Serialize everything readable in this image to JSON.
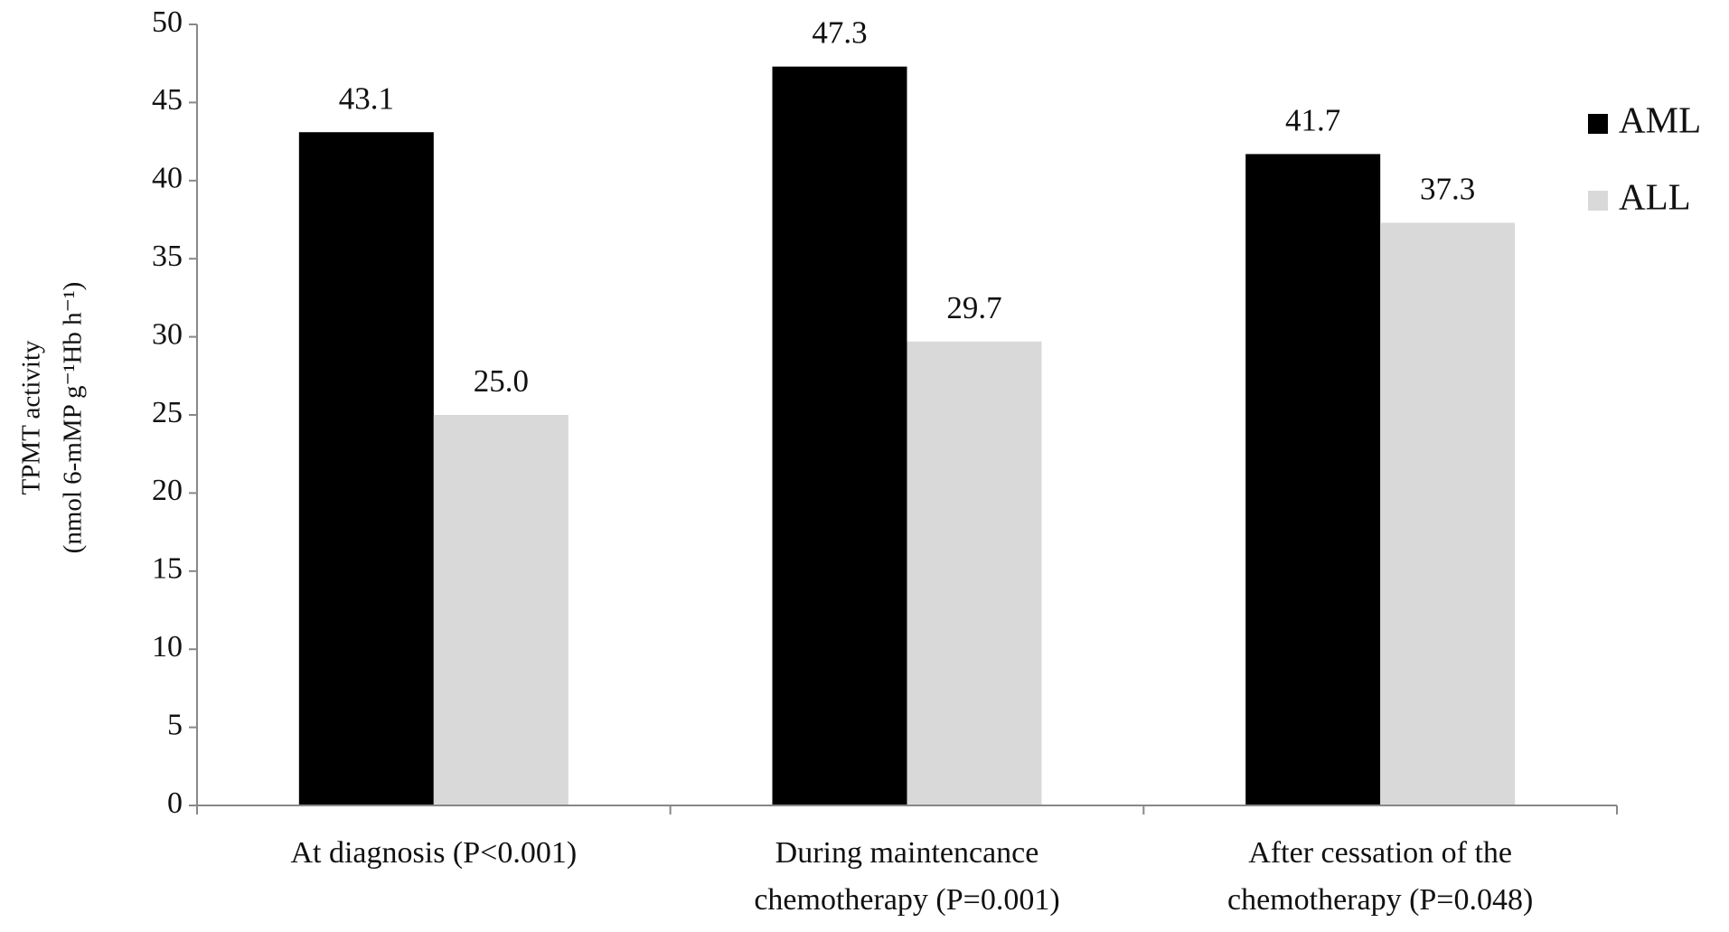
{
  "chart_data": {
    "type": "bar",
    "y_label": [
      "TPMT activity",
      "(nmol 6-mMP g⁻¹Hb h⁻¹)"
    ],
    "categories": [
      [
        "At diagnosis (P<0.001)"
      ],
      [
        "During maintencance",
        "chemotherapy (P=0.001)"
      ],
      [
        "After cessation of the",
        "chemotherapy (P=0.048)"
      ]
    ],
    "series": [
      {
        "name": "AML",
        "color": "#000000",
        "values": [
          43.1,
          47.3,
          41.7
        ],
        "value_labels": [
          "43.1",
          "47.3",
          "41.7"
        ]
      },
      {
        "name": "ALL",
        "color": "#d9d9d9",
        "values": [
          25.0,
          29.7,
          37.3
        ],
        "value_labels": [
          "25.0",
          "29.7",
          "37.3"
        ]
      }
    ],
    "ylim": [
      0,
      50
    ],
    "yticks": [
      0,
      5,
      10,
      15,
      20,
      25,
      30,
      35,
      40,
      45,
      50
    ],
    "legend": "right"
  }
}
